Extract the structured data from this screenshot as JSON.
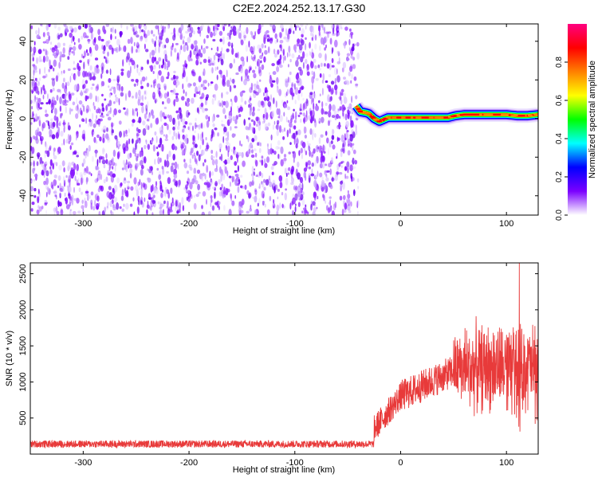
{
  "chart_data": [
    {
      "type": "heatmap",
      "title": "C2E2.2024.252.13.17.G30",
      "xlabel": "Height of straight line (km)",
      "ylabel": "Frequency (Hz)",
      "xlim": [
        -350,
        130
      ],
      "ylim": [
        -50,
        49
      ],
      "xticks": [
        -300,
        -200,
        -100,
        0,
        100
      ],
      "yticks": [
        -40,
        -20,
        0,
        20,
        40
      ],
      "colorbar": {
        "label": "Normalized spectral amplitude",
        "range": [
          0,
          1
        ],
        "ticks": [
          "0.0",
          "0.2",
          "0.4",
          "0.6",
          "0.8"
        ],
        "colors": [
          "#ffffff",
          "#7b00ff",
          "#0000ff",
          "#00ffff",
          "#00ff00",
          "#ffff00",
          "#ff8000",
          "#ff0000",
          "#ff0080"
        ]
      },
      "regions": [
        {
          "name": "noise",
          "x": [
            -350,
            -40
          ],
          "y": [
            -50,
            49
          ],
          "level": 0.08
        },
        {
          "name": "signal",
          "x": [
            -40,
            130
          ],
          "level": 0.95,
          "trace": [
            [
              -42,
              6.5
            ],
            [
              -38,
              3.5
            ],
            [
              -33,
              3
            ],
            [
              -30,
              2.5
            ],
            [
              -25,
              0
            ],
            [
              -20,
              -1.5
            ],
            [
              -12,
              0.5
            ],
            [
              -5,
              0.5
            ],
            [
              5,
              0.5
            ],
            [
              20,
              0.5
            ],
            [
              35,
              0.5
            ],
            [
              45,
              0.5
            ],
            [
              52,
              1.5
            ],
            [
              60,
              2
            ],
            [
              80,
              2
            ],
            [
              100,
              2
            ],
            [
              110,
              1.5
            ],
            [
              120,
              1.5
            ],
            [
              130,
              2
            ]
          ]
        }
      ]
    },
    {
      "type": "line",
      "xlabel": "Height of straight line (km)",
      "ylabel": "SNR (10 * v/v)",
      "xlim": [
        -350,
        130
      ],
      "ylim": [
        0,
        2650
      ],
      "xticks": [
        -300,
        -200,
        -100,
        0,
        100
      ],
      "yticks": [
        500,
        1000,
        1500,
        2000,
        2500
      ],
      "color": "#e83a3a",
      "segments": [
        {
          "x": [
            -350,
            -25
          ],
          "baseline": 140,
          "spread": 100
        },
        {
          "x": [
            -25,
            0
          ],
          "baseline_start": 350,
          "baseline_end": 800,
          "spread": 380
        },
        {
          "x": [
            0,
            50
          ],
          "baseline_start": 800,
          "baseline_end": 1150,
          "spread": 450
        },
        {
          "x": [
            50,
            130
          ],
          "baseline": 1200,
          "spread": 900
        }
      ],
      "peak": {
        "x": 112,
        "y": 2650
      }
    }
  ]
}
